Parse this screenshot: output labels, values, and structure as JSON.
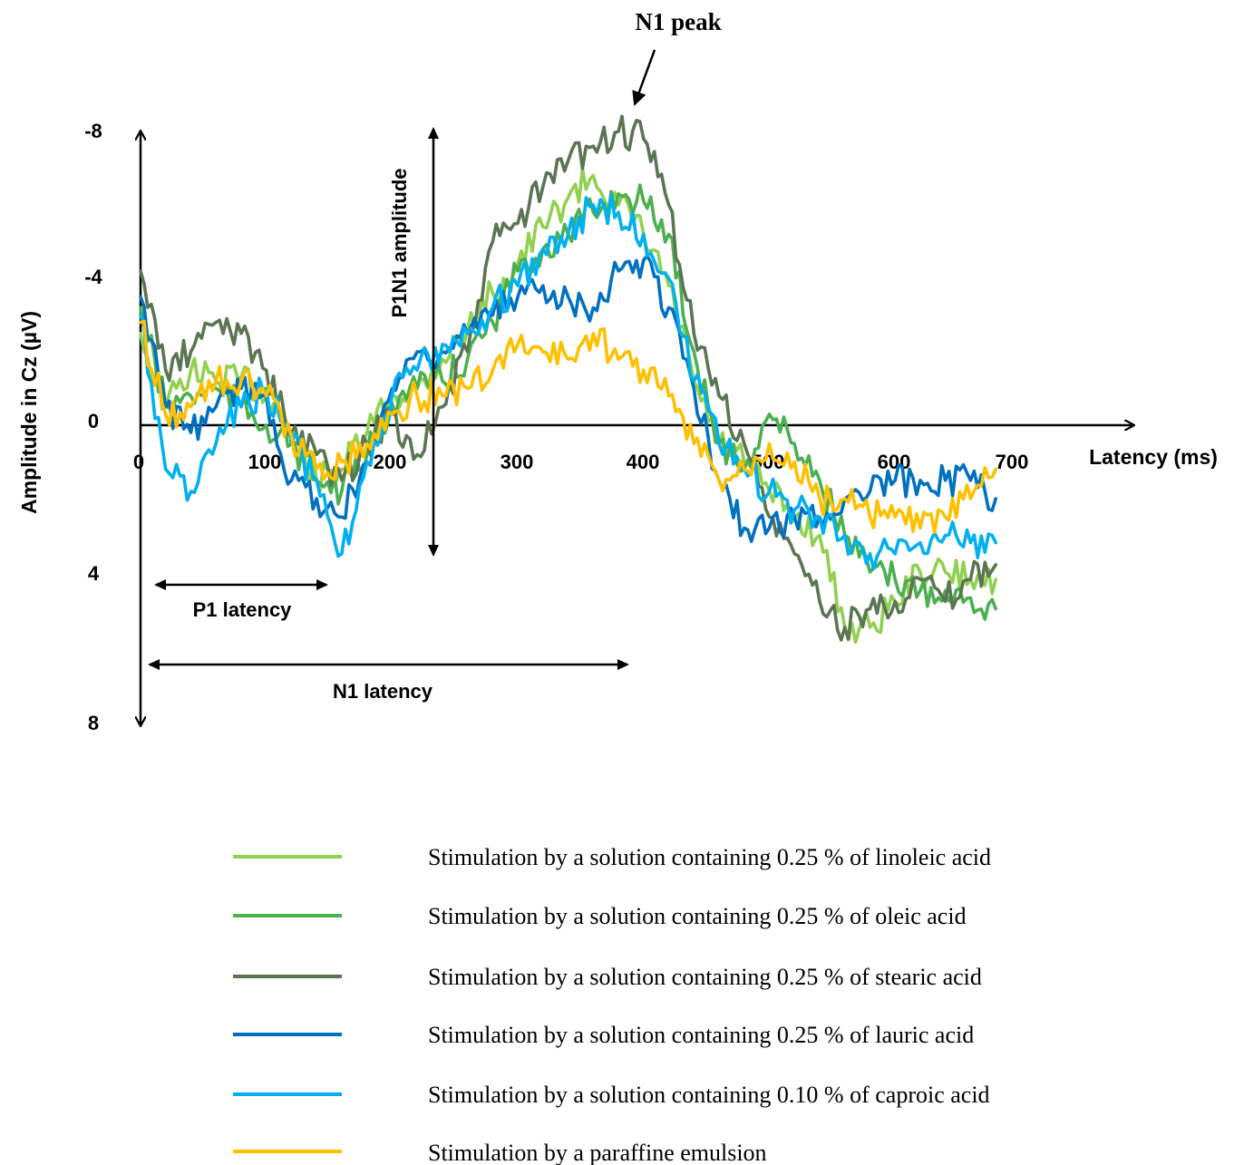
{
  "chart_data": {
    "type": "line",
    "title": "",
    "xlabel": "Latency (ms)",
    "ylabel": "Amplitude in Cz  (µV)",
    "xlim": [
      0,
      700
    ],
    "ylim": [
      8,
      -8
    ],
    "y_inverted": true,
    "x_ticks": [
      "0",
      "100",
      "200",
      "300",
      "400",
      "500",
      "600",
      "700"
    ],
    "y_ticks": [
      "-8",
      "-4",
      "0",
      "4",
      "8"
    ],
    "grid": false,
    "legend_position": "bottom",
    "series": [
      {
        "name": "Stimulation by a solution containing 0.25 % of linoleic acid",
        "color": "#92d050",
        "x": [
          0,
          20,
          40,
          60,
          80,
          100,
          120,
          140,
          160,
          180,
          200,
          220,
          240,
          260,
          280,
          300,
          320,
          340,
          360,
          380,
          400,
          420,
          440,
          460,
          480,
          500,
          520,
          540,
          560,
          580,
          600,
          620,
          640,
          660,
          680
        ],
        "y": [
          -2.5,
          -0.5,
          -1.5,
          -1.2,
          -1.3,
          -0.8,
          0.2,
          1.5,
          1.2,
          0.2,
          -0.8,
          -1.0,
          -1.8,
          -2.6,
          -3.6,
          -4.4,
          -5.4,
          -6.2,
          -6.8,
          -6.0,
          -5.2,
          -3.8,
          -1.2,
          0.5,
          1.0,
          1.8,
          2.5,
          3.0,
          5.5,
          5.5,
          4.8,
          4.0,
          4.0,
          4.2,
          4.2
        ]
      },
      {
        "name": "Stimulation by a solution containing 0.25 % of oleic acid",
        "color": "#4caf50",
        "x": [
          0,
          20,
          40,
          60,
          80,
          100,
          120,
          140,
          160,
          180,
          200,
          220,
          240,
          260,
          280,
          300,
          320,
          340,
          360,
          380,
          400,
          420,
          440,
          460,
          480,
          500,
          520,
          540,
          560,
          580,
          600,
          620,
          640,
          660,
          680
        ],
        "y": [
          -3.2,
          -0.5,
          -0.8,
          -1.0,
          -0.5,
          0.0,
          0.5,
          1.5,
          1.8,
          0.8,
          -0.6,
          -1.0,
          -1.2,
          -1.8,
          -2.8,
          -4.2,
          -4.8,
          -5.2,
          -5.8,
          -6.3,
          -6.1,
          -5.2,
          -2.0,
          0.5,
          1.2,
          -0.3,
          0.5,
          1.5,
          3.0,
          4.0,
          4.2,
          4.5,
          4.5,
          4.7,
          5.0
        ]
      },
      {
        "name": "Stimulation by a solution containing 0.25 % of stearic acid",
        "color": "#5b7553",
        "x": [
          0,
          20,
          40,
          60,
          80,
          100,
          120,
          140,
          160,
          180,
          200,
          220,
          240,
          260,
          280,
          300,
          320,
          340,
          360,
          380,
          400,
          420,
          440,
          460,
          480,
          500,
          520,
          540,
          560,
          580,
          600,
          620,
          640,
          660,
          680
        ],
        "y": [
          -4.2,
          -1.5,
          -2.0,
          -2.8,
          -2.5,
          -1.5,
          0.2,
          0.8,
          1.5,
          0.5,
          -0.3,
          0.8,
          -0.5,
          -2.0,
          -5.0,
          -5.5,
          -6.5,
          -7.2,
          -7.6,
          -8.0,
          -7.8,
          -6.0,
          -2.5,
          -0.8,
          0.5,
          2.5,
          3.5,
          4.8,
          5.5,
          5.0,
          4.8,
          4.2,
          4.8,
          4.2,
          3.8
        ]
      },
      {
        "name": "Stimulation by a solution containing 0.25 % of lauric acid",
        "color": "#0070c0",
        "x": [
          0,
          20,
          40,
          60,
          80,
          100,
          120,
          140,
          160,
          180,
          200,
          220,
          240,
          260,
          280,
          300,
          320,
          340,
          360,
          380,
          400,
          420,
          440,
          460,
          480,
          500,
          520,
          540,
          560,
          580,
          600,
          620,
          640,
          660,
          680
        ],
        "y": [
          -3.5,
          -0.5,
          0.2,
          -0.5,
          -1.0,
          -0.8,
          1.5,
          2.0,
          2.5,
          1.0,
          -1.0,
          -2.0,
          -2.0,
          -2.5,
          -3.0,
          -3.5,
          -3.8,
          -3.5,
          -3.2,
          -4.2,
          -4.5,
          -3.2,
          -1.0,
          1.5,
          2.8,
          2.8,
          2.5,
          2.5,
          2.0,
          1.8,
          1.5,
          1.5,
          1.5,
          1.5,
          2.0
        ]
      },
      {
        "name": "Stimulation by a solution containing 0.10 % of caproic acid",
        "color": "#00b0f0",
        "x": [
          0,
          20,
          40,
          60,
          80,
          100,
          120,
          140,
          160,
          180,
          200,
          220,
          240,
          260,
          280,
          300,
          320,
          340,
          360,
          380,
          400,
          420,
          440,
          460,
          480,
          500,
          520,
          540,
          560,
          580,
          600,
          620,
          640,
          660,
          680
        ],
        "y": [
          -3.0,
          1.2,
          1.8,
          0.5,
          -0.5,
          -1.0,
          0.5,
          1.5,
          3.5,
          1.0,
          -0.8,
          -1.5,
          -2.2,
          -2.5,
          -3.2,
          -3.8,
          -4.8,
          -5.2,
          -6.0,
          -5.8,
          -5.2,
          -4.0,
          -1.2,
          0.5,
          1.2,
          1.8,
          2.3,
          2.5,
          3.0,
          3.5,
          3.5,
          3.2,
          3.0,
          3.2,
          3.2
        ]
      },
      {
        "name": "Stimulation by a paraffine emulsion",
        "color": "#ffc000",
        "x": [
          0,
          20,
          40,
          60,
          80,
          100,
          120,
          140,
          160,
          180,
          200,
          220,
          240,
          260,
          280,
          300,
          320,
          340,
          360,
          380,
          400,
          420,
          440,
          460,
          480,
          500,
          520,
          540,
          560,
          580,
          600,
          620,
          640,
          660,
          680
        ],
        "y": [
          -2.8,
          -0.3,
          -0.5,
          -1.2,
          -1.2,
          -0.8,
          0.3,
          1.2,
          1.0,
          0.5,
          -0.3,
          -0.8,
          -0.8,
          -1.0,
          -1.5,
          -2.2,
          -2.0,
          -1.8,
          -2.5,
          -1.8,
          -1.5,
          -0.8,
          0.5,
          1.5,
          1.2,
          0.5,
          1.0,
          2.0,
          2.0,
          2.5,
          2.5,
          2.8,
          2.5,
          2.0,
          1.2
        ]
      }
    ]
  },
  "annotations": {
    "n1_peak": "N1 peak",
    "p1n1_amplitude": "P1N1 amplitude",
    "p1_latency": "P1 latency",
    "n1_latency": "N1 latency"
  }
}
